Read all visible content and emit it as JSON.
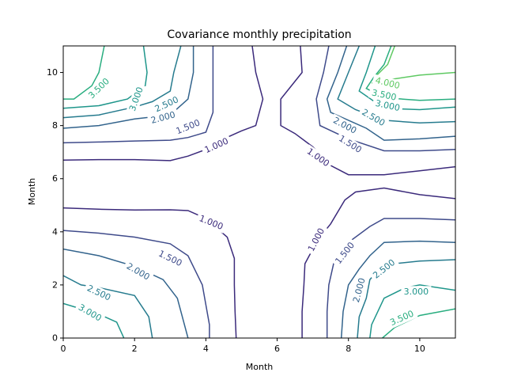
{
  "chart_data": {
    "type": "contour",
    "title": "Covariance monthly precipitation",
    "xlabel": "Month",
    "ylabel": "Month",
    "xlim": [
      0,
      11
    ],
    "ylim": [
      0,
      11
    ],
    "xticks": [
      "0",
      "2",
      "4",
      "6",
      "8",
      "10"
    ],
    "yticks": [
      "0",
      "2",
      "4",
      "6",
      "8",
      "10"
    ],
    "levels": [
      {
        "value": 1.0,
        "label": "1.000",
        "color": "#3b2a7b"
      },
      {
        "value": 1.5,
        "label": "1.500",
        "color": "#3e4a8a"
      },
      {
        "value": 2.0,
        "label": "2.000",
        "color": "#32638c"
      },
      {
        "value": 2.5,
        "label": "2.500",
        "color": "#267b8e"
      },
      {
        "value": 3.0,
        "label": "3.000",
        "color": "#1f968b"
      },
      {
        "value": 3.5,
        "label": "3.500",
        "color": "#28ad7f"
      },
      {
        "value": 4.0,
        "label": "4.000",
        "color": "#5ec962"
      }
    ],
    "contours": [
      {
        "level": "1.000",
        "points": [
          [
            0,
            6.7
          ],
          [
            1,
            6.72
          ],
          [
            2,
            6.72
          ],
          [
            3,
            6.68
          ],
          [
            3.5,
            6.85
          ],
          [
            4,
            7.1
          ],
          [
            4.5,
            7.5
          ],
          [
            5,
            7.8
          ],
          [
            5.4,
            8.0
          ],
          [
            5.6,
            9.0
          ],
          [
            5.4,
            10.0
          ],
          [
            5.3,
            11
          ]
        ]
      },
      {
        "level": "1.000",
        "points": [
          [
            0,
            4.9
          ],
          [
            1,
            4.85
          ],
          [
            2,
            4.82
          ],
          [
            3,
            4.83
          ],
          [
            3.5,
            4.8
          ],
          [
            4,
            4.5
          ],
          [
            4.6,
            3.8
          ],
          [
            4.8,
            3.0
          ],
          [
            4.8,
            2.0
          ],
          [
            4.82,
            1.0
          ],
          [
            4.85,
            0
          ]
        ]
      },
      {
        "level": "1.000",
        "points": [
          [
            6.65,
            11
          ],
          [
            6.7,
            10.0
          ],
          [
            6.1,
            9.0
          ],
          [
            6.1,
            8.0
          ],
          [
            6.5,
            7.7
          ],
          [
            7,
            7.2
          ],
          [
            7.5,
            6.5
          ],
          [
            8,
            6.15
          ],
          [
            9,
            6.15
          ],
          [
            10,
            6.3
          ],
          [
            11,
            6.45
          ]
        ]
      },
      {
        "level": "1.000",
        "points": [
          [
            6.7,
            0
          ],
          [
            6.7,
            1.0
          ],
          [
            6.75,
            2.0
          ],
          [
            6.78,
            2.8
          ],
          [
            6.9,
            3.1
          ],
          [
            7.2,
            3.8
          ],
          [
            7.5,
            4.3
          ],
          [
            7.9,
            5.2
          ],
          [
            8.2,
            5.5
          ],
          [
            9,
            5.65
          ],
          [
            10,
            5.4
          ],
          [
            11,
            5.25
          ]
        ]
      },
      {
        "level": "1.500",
        "points": [
          [
            0,
            7.35
          ],
          [
            1,
            7.38
          ],
          [
            2,
            7.42
          ],
          [
            3,
            7.45
          ],
          [
            3.5,
            7.55
          ],
          [
            4,
            7.75
          ],
          [
            4.2,
            8.5
          ],
          [
            4.2,
            11
          ]
        ]
      },
      {
        "level": "1.500",
        "points": [
          [
            0,
            4.05
          ],
          [
            1,
            3.95
          ],
          [
            2,
            3.8
          ],
          [
            3,
            3.55
          ],
          [
            3.5,
            3.1
          ],
          [
            3.9,
            2.0
          ],
          [
            4.1,
            0.5
          ],
          [
            4.1,
            0
          ]
        ]
      },
      {
        "level": "1.500",
        "points": [
          [
            7.45,
            11
          ],
          [
            7.3,
            10.0
          ],
          [
            7.1,
            9.0
          ],
          [
            7.2,
            8.0
          ],
          [
            8,
            7.5
          ],
          [
            9,
            7.05
          ],
          [
            10,
            7.05
          ],
          [
            11,
            7.1
          ]
        ]
      },
      {
        "level": "1.500",
        "points": [
          [
            7.4,
            0
          ],
          [
            7.4,
            1.0
          ],
          [
            7.45,
            2.0
          ],
          [
            7.6,
            2.9
          ],
          [
            8,
            3.6
          ],
          [
            8.6,
            4.2
          ],
          [
            9,
            4.5
          ],
          [
            10,
            4.5
          ],
          [
            11,
            4.45
          ]
        ]
      },
      {
        "level": "2.000",
        "points": [
          [
            0,
            7.9
          ],
          [
            1,
            8.0
          ],
          [
            2,
            8.25
          ],
          [
            3,
            8.4
          ],
          [
            3.5,
            9.0
          ],
          [
            3.65,
            10.0
          ],
          [
            3.65,
            11
          ]
        ]
      },
      {
        "level": "2.000",
        "points": [
          [
            0,
            3.35
          ],
          [
            1,
            3.1
          ],
          [
            2,
            2.7
          ],
          [
            2.8,
            2.2
          ],
          [
            3.2,
            1.5
          ],
          [
            3.5,
            0
          ]
        ]
      },
      {
        "level": "2.000",
        "points": [
          [
            7.95,
            11
          ],
          [
            7.7,
            10.0
          ],
          [
            7.4,
            9.0
          ],
          [
            7.5,
            8.5
          ],
          [
            8.5,
            7.9
          ],
          [
            9,
            7.45
          ],
          [
            10,
            7.5
          ],
          [
            11,
            7.6
          ]
        ]
      },
      {
        "level": "2.000",
        "points": [
          [
            7.8,
            0
          ],
          [
            7.85,
            1.0
          ],
          [
            8.0,
            2.0
          ],
          [
            8.3,
            2.6
          ],
          [
            8.6,
            3.1
          ],
          [
            9,
            3.6
          ],
          [
            10,
            3.65
          ],
          [
            11,
            3.6
          ]
        ]
      },
      {
        "level": "2.500",
        "points": [
          [
            0,
            8.3
          ],
          [
            1,
            8.4
          ],
          [
            2,
            8.7
          ],
          [
            2.5,
            8.9
          ],
          [
            3.0,
            9.3
          ],
          [
            3.1,
            10.0
          ],
          [
            3.3,
            11
          ]
        ]
      },
      {
        "level": "2.500",
        "points": [
          [
            0,
            2.35
          ],
          [
            0.5,
            2.0
          ],
          [
            1,
            1.9
          ],
          [
            2,
            1.6
          ],
          [
            2.4,
            0.8
          ],
          [
            2.5,
            0
          ]
        ]
      },
      {
        "level": "2.500",
        "points": [
          [
            8.3,
            11
          ],
          [
            8.0,
            10.0
          ],
          [
            7.7,
            9.0
          ],
          [
            8.2,
            8.6
          ],
          [
            9,
            8.2
          ],
          [
            10,
            8.1
          ],
          [
            11,
            8.15
          ]
        ]
      },
      {
        "level": "2.500",
        "points": [
          [
            8.25,
            0
          ],
          [
            8.3,
            0.8
          ],
          [
            8.5,
            1.5
          ],
          [
            8.6,
            2.2
          ],
          [
            8.8,
            2.5
          ],
          [
            9.3,
            2.8
          ],
          [
            10,
            2.9
          ],
          [
            11,
            2.95
          ]
        ]
      },
      {
        "level": "3.000",
        "points": [
          [
            0,
            8.65
          ],
          [
            1,
            8.75
          ],
          [
            1.8,
            9.0
          ],
          [
            2.3,
            9.5
          ],
          [
            2.35,
            10.0
          ],
          [
            2.25,
            11
          ]
        ]
      },
      {
        "level": "3.000",
        "points": [
          [
            0,
            1.3
          ],
          [
            0.5,
            1.1
          ],
          [
            1,
            0.9
          ],
          [
            1.5,
            0.6
          ],
          [
            1.7,
            0
          ]
        ]
      },
      {
        "level": "3.000",
        "points": [
          [
            8.75,
            11
          ],
          [
            8.5,
            10.0
          ],
          [
            8.3,
            9.3
          ],
          [
            9,
            8.65
          ],
          [
            10,
            8.6
          ],
          [
            11,
            8.7
          ]
        ]
      },
      {
        "level": "3.000",
        "points": [
          [
            8.6,
            0
          ],
          [
            8.65,
            0.5
          ],
          [
            9,
            1.5
          ],
          [
            9.6,
            1.9
          ],
          [
            10,
            2.0
          ],
          [
            11,
            1.8
          ]
        ]
      },
      {
        "level": "3.500",
        "points": [
          [
            0,
            9.0
          ],
          [
            0.3,
            9.0
          ],
          [
            0.8,
            9.5
          ],
          [
            1,
            10.0
          ],
          [
            1.15,
            11
          ]
        ]
      },
      {
        "level": "3.500",
        "points": [
          [
            9.2,
            11
          ],
          [
            9.0,
            10.3
          ],
          [
            8.7,
            9.8
          ],
          [
            8.5,
            9.4
          ],
          [
            9,
            9.05
          ],
          [
            10,
            8.95
          ],
          [
            11,
            9.0
          ]
        ]
      },
      {
        "level": "3.500",
        "points": [
          [
            8.95,
            0
          ],
          [
            9.3,
            0.4
          ],
          [
            10,
            0.85
          ],
          [
            11,
            1.1
          ]
        ]
      },
      {
        "level": "4.000",
        "points": [
          [
            8.65,
            9.6
          ],
          [
            9.0,
            9.7
          ],
          [
            10,
            9.9
          ],
          [
            11,
            10.0
          ]
        ]
      },
      {
        "level": "4.000",
        "points": [
          [
            9.3,
            11
          ],
          [
            9.1,
            10.3
          ],
          [
            8.8,
            9.9
          ]
        ]
      }
    ],
    "labels": [
      {
        "text": "1.000",
        "x": 4.3,
        "y": 7.25,
        "rot": -24
      },
      {
        "text": "1.000",
        "x": 4.15,
        "y": 4.35,
        "rot": 22
      },
      {
        "text": "1.000",
        "x": 7.15,
        "y": 6.8,
        "rot": 35
      },
      {
        "text": "1.000",
        "x": 7.1,
        "y": 3.7,
        "rot": -62
      },
      {
        "text": "1.500",
        "x": 3.5,
        "y": 7.95,
        "rot": -22
      },
      {
        "text": "1.500",
        "x": 3.0,
        "y": 3.0,
        "rot": 26
      },
      {
        "text": "1.500",
        "x": 8.05,
        "y": 7.3,
        "rot": 32
      },
      {
        "text": "1.500",
        "x": 7.9,
        "y": 3.2,
        "rot": -52
      },
      {
        "text": "2.000",
        "x": 2.8,
        "y": 8.3,
        "rot": -15
      },
      {
        "text": "2.000",
        "x": 2.1,
        "y": 2.5,
        "rot": 30
      },
      {
        "text": "2.000",
        "x": 7.9,
        "y": 8.0,
        "rot": 28
      },
      {
        "text": "2.000",
        "x": 8.3,
        "y": 1.8,
        "rot": -75
      },
      {
        "text": "2.500",
        "x": 2.9,
        "y": 8.8,
        "rot": -25
      },
      {
        "text": "2.500",
        "x": 1.0,
        "y": 1.7,
        "rot": 25
      },
      {
        "text": "2.500",
        "x": 8.7,
        "y": 8.3,
        "rot": 30
      },
      {
        "text": "2.500",
        "x": 9.0,
        "y": 2.6,
        "rot": -38
      },
      {
        "text": "3.000",
        "x": 2.05,
        "y": 9.0,
        "rot": -70
      },
      {
        "text": "3.000",
        "x": 0.75,
        "y": 0.95,
        "rot": 30
      },
      {
        "text": "3.000",
        "x": 9.1,
        "y": 8.75,
        "rot": 12
      },
      {
        "text": "3.000",
        "x": 9.9,
        "y": 1.75,
        "rot": 0
      },
      {
        "text": "3.500",
        "x": 1.0,
        "y": 9.4,
        "rot": -44
      },
      {
        "text": "3.500",
        "x": 9.0,
        "y": 9.15,
        "rot": 12
      },
      {
        "text": "3.500",
        "x": 9.5,
        "y": 0.75,
        "rot": -24
      },
      {
        "text": "4.000",
        "x": 9.1,
        "y": 9.6,
        "rot": 14
      }
    ]
  }
}
